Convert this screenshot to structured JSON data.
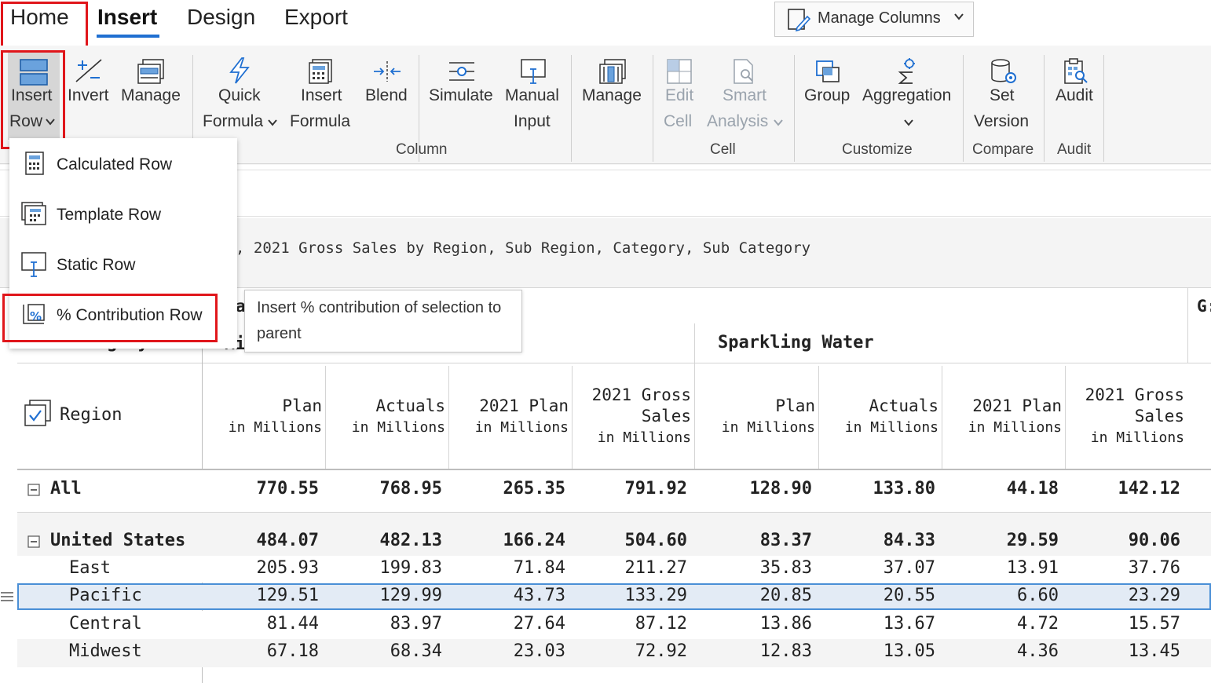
{
  "menu": {
    "tabs": [
      "Home",
      "Insert",
      "Design",
      "Export"
    ],
    "manage_columns": "Manage Columns"
  },
  "ribbon": {
    "insert_row": [
      "Insert",
      "Row"
    ],
    "invert": "Invert",
    "manage_row": "Manage",
    "quick_formula": [
      "Quick",
      "Formula"
    ],
    "insert_formula": [
      "Insert",
      "Formula"
    ],
    "blend": "Blend",
    "simulate": "Simulate",
    "manual_input": [
      "Manual",
      "Input"
    ],
    "manage_col": "Manage",
    "edit_cell": [
      "Edit",
      "Cell"
    ],
    "smart_analysis": [
      "Smart",
      "Analysis"
    ],
    "group": "Group",
    "aggregation": "Aggregation",
    "set_version": [
      "Set",
      "Version"
    ],
    "audit": "Audit",
    "group_labels": {
      "column": "Column",
      "cell": "Cell",
      "customize": "Customize",
      "compare": "Compare",
      "audit": "Audit"
    }
  },
  "dropdown": {
    "items": [
      "Calculated Row",
      "Template Row",
      "Static Row",
      "% Contribution Row"
    ]
  },
  "tooltip": "Insert % contribution of selection to parent",
  "report": {
    "title": ", 2021 Gross Sales by Region, Sub Region, Category, Sub Category",
    "partial_cat_a": "a",
    "partial_g": "G:",
    "partial_mi": "Mi",
    "sub_category_label": "Sub Category",
    "group_sparkling": "Sparkling Water",
    "region_label": "Region",
    "unit": "in Millions",
    "columns": [
      [
        "Plan"
      ],
      [
        "Actuals"
      ],
      [
        "2021 Plan"
      ],
      [
        "2021 Gross",
        "Sales"
      ],
      [
        "Plan"
      ],
      [
        "Actuals"
      ],
      [
        "2021 Plan"
      ],
      [
        "2021 Gross",
        "Sales"
      ]
    ],
    "rows": [
      {
        "label": "All",
        "values": [
          "770.55",
          "768.95",
          "265.35",
          "791.92",
          "128.90",
          "133.80",
          "44.18",
          "142.12"
        ]
      },
      {
        "label": "United States",
        "values": [
          "484.07",
          "482.13",
          "166.24",
          "504.60",
          "83.37",
          "84.33",
          "29.59",
          "90.06"
        ]
      },
      {
        "label": "East",
        "values": [
          "205.93",
          "199.83",
          "71.84",
          "211.27",
          "35.83",
          "37.07",
          "13.91",
          "37.76"
        ]
      },
      {
        "label": "Pacific",
        "values": [
          "129.51",
          "129.99",
          "43.73",
          "133.29",
          "20.85",
          "20.55",
          "6.60",
          "23.29"
        ]
      },
      {
        "label": "Central",
        "values": [
          "81.44",
          "83.97",
          "27.64",
          "87.12",
          "13.86",
          "13.67",
          "4.72",
          "15.57"
        ]
      },
      {
        "label": "Midwest",
        "values": [
          "67.18",
          "68.34",
          "23.03",
          "72.92",
          "12.83",
          "13.05",
          "4.36",
          "13.45"
        ]
      }
    ]
  },
  "colors": {
    "accent": "#1f6fd1",
    "highlight": "#e0161b",
    "selected_row": "#e3ebf5"
  }
}
